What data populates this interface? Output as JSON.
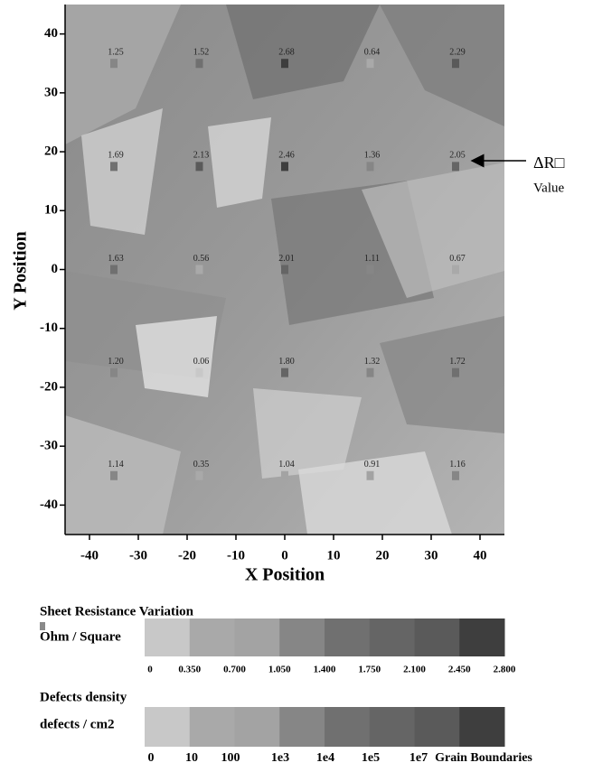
{
  "chart_data": {
    "type": "scatter",
    "xlabel": "X  Position",
    "ylabel": "Y  Position",
    "xlim": [
      -45,
      45
    ],
    "ylim": [
      -45,
      45
    ],
    "xticks": [
      -40,
      -30,
      -20,
      -10,
      0,
      10,
      20,
      30,
      40
    ],
    "yticks": [
      -40,
      -30,
      -20,
      -10,
      0,
      10,
      20,
      30,
      40
    ],
    "x": [
      -35,
      -17.5,
      0,
      17.5,
      35,
      -35,
      -17.5,
      0,
      17.5,
      35,
      -35,
      -17.5,
      0,
      17.5,
      35,
      -35,
      -17.5,
      0,
      17.5,
      35,
      -35,
      -17.5,
      0,
      17.5,
      35
    ],
    "y": [
      35,
      35,
      35,
      35,
      35,
      17.5,
      17.5,
      17.5,
      17.5,
      17.5,
      0,
      0,
      0,
      0,
      0,
      -17.5,
      -17.5,
      -17.5,
      -17.5,
      -17.5,
      -35,
      -35,
      -35,
      -35,
      -35
    ],
    "values": [
      1.25,
      1.52,
      2.68,
      0.64,
      2.29,
      1.69,
      2.13,
      2.46,
      1.36,
      2.05,
      1.63,
      0.56,
      2.01,
      1.11,
      0.67,
      1.2,
      0.06,
      1.8,
      1.32,
      1.72,
      1.14,
      0.35,
      1.04,
      0.91,
      1.16
    ],
    "value_labels": [
      "1.25",
      "1.52",
      "2.68",
      "0.64",
      "2.29",
      "1.69",
      "2.13",
      "2.46",
      "1.36",
      "2.05",
      "1.63",
      "0.56",
      "2.01",
      "1.11",
      "0.67",
      "1.20",
      "0.06",
      "1.80",
      "1.32",
      "1.72",
      "1.14",
      "0.35",
      "1.04",
      "0.91",
      "1.16"
    ],
    "annotation": {
      "symbol": "ΔR□",
      "text": "Value"
    },
    "colorbar": {
      "title": "Sheet Resistance Variation",
      "unit": "Ohm / Square",
      "ticks": [
        0,
        {
          "value": 0.35,
          "label": "0.350"
        },
        {
          "value": 0.7,
          "label": "0.700"
        },
        {
          "value": 1.05,
          "label": "1.050"
        },
        {
          "value": 1.4,
          "label": "1.400"
        },
        {
          "value": 1.75,
          "label": "1.750"
        },
        {
          "value": 2.1,
          "label": "2.100"
        },
        {
          "value": 2.45,
          "label": "2.450"
        },
        {
          "value": 2.8,
          "label": "2.800"
        }
      ],
      "colors": [
        "#c8c8c8",
        "#a9a9a9",
        "#a3a3a3",
        "#868686",
        "#707070",
        "#656565",
        "#5a5a5a",
        "#3e3e3e"
      ]
    },
    "defects_legend": {
      "title": "Defects density",
      "unit": "defects / cm2",
      "labels": [
        "0",
        "10",
        "100",
        "1e3",
        "1e4",
        "1e5",
        "1e7",
        "Grain Boundaries"
      ],
      "colors": [
        "#c8c8c8",
        "#a9a9a9",
        "#a3a3a3",
        "#868686",
        "#707070",
        "#656565",
        "#5a5a5a",
        "#3e3e3e"
      ]
    }
  }
}
